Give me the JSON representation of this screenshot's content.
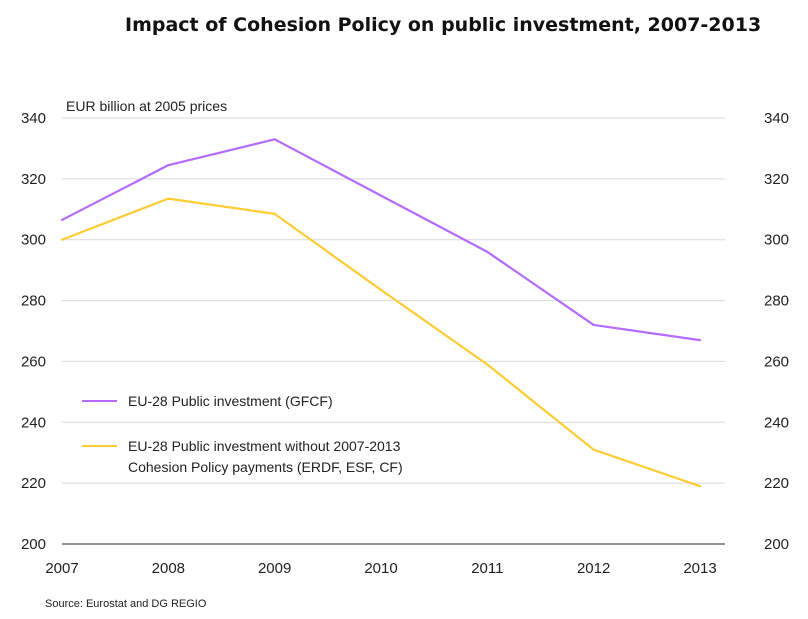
{
  "chart_data": {
    "type": "line",
    "title": "Impact of Cohesion Policy on public investment, 2007-2013",
    "unit_label": "EUR billion at 2005 prices",
    "x": [
      "2007",
      "2008",
      "2009",
      "2010",
      "2011",
      "2012",
      "2013"
    ],
    "ylim": [
      200,
      340
    ],
    "yticks": [
      200,
      220,
      240,
      260,
      280,
      300,
      320,
      340
    ],
    "grid": true,
    "legend_position": "left-middle",
    "series": [
      {
        "name": "EU-28 Public investment (GFCF)",
        "color": "#b36cff",
        "values": [
          306.5,
          324.5,
          333,
          314.5,
          296,
          272,
          267
        ]
      },
      {
        "name": "EU-28 Public investment without 2007-2013",
        "name_line2": "Cohesion Policy payments (ERDF, ESF, CF)",
        "color": "#ffcc33",
        "values": [
          300,
          313.5,
          308.5,
          283.5,
          259,
          231,
          219
        ]
      }
    ],
    "source": "Source: Eurostat and DG REGIO"
  }
}
